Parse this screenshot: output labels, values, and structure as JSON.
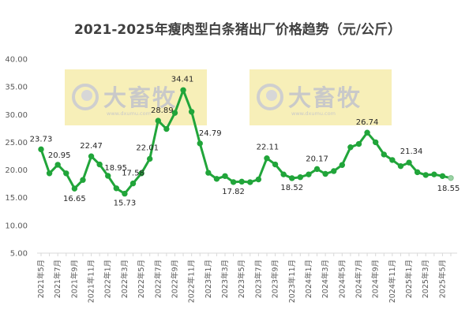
{
  "chart_data": {
    "type": "line",
    "title": "2021-2025年瘦肉型白条猪出厂价格趋势（元/公斤）",
    "ylim": [
      5,
      40
    ],
    "yticks": [
      "5.00",
      "10.00",
      "15.00",
      "20.00",
      "25.00",
      "30.00",
      "35.00",
      "40.00"
    ],
    "grid": false,
    "legend": "none",
    "line_color": "#21a53a",
    "x": [
      "2021年5月",
      "2021年6月",
      "2021年7月",
      "2021年8月",
      "2021年9月",
      "2021年10月",
      "2021年11月",
      "2021年12月",
      "2022年1月",
      "2022年2月",
      "2022年3月",
      "2022年4月",
      "2022年5月",
      "2022年6月",
      "2022年7月",
      "2022年8月",
      "2022年9月",
      "2022年10月",
      "2022年11月",
      "2022年12月",
      "2023年1月",
      "2023年2月",
      "2023年3月",
      "2023年4月",
      "2023年5月",
      "2023年6月",
      "2023年7月",
      "2023年8月",
      "2023年9月",
      "2023年10月",
      "2023年11月",
      "2023年12月",
      "2024年1月",
      "2024年2月",
      "2024年3月",
      "2024年4月",
      "2024年5月",
      "2024年6月",
      "2024年7月",
      "2024年8月",
      "2024年9月",
      "2024年10月",
      "2024年11月",
      "2024年12月",
      "2025年1月",
      "2025年2月",
      "2025年3月",
      "2025年4月",
      "2025年5月",
      "2025年6月"
    ],
    "xtick_labels": [
      "2021年5月",
      "2021年7月",
      "2021年9月",
      "2021年11月",
      "2022年1月",
      "2022年3月",
      "2022年5月",
      "2022年7月",
      "2022年9月",
      "2022年11月",
      "2023年1月",
      "2023年3月",
      "2023年5月",
      "2023年7月",
      "2023年9月",
      "2023年11月",
      "2024年1月",
      "2024年3月",
      "2024年5月",
      "2024年7月",
      "2024年9月",
      "2024年11月",
      "2025年1月",
      "2025年3月",
      "2025年5月"
    ],
    "values": [
      23.73,
      19.4,
      20.95,
      19.4,
      16.65,
      18.2,
      22.47,
      21.0,
      18.95,
      16.7,
      15.73,
      17.58,
      19.4,
      22.01,
      28.89,
      27.4,
      30.3,
      34.41,
      30.5,
      24.79,
      19.5,
      18.4,
      18.9,
      17.82,
      17.9,
      17.8,
      18.3,
      22.11,
      21.0,
      19.2,
      18.52,
      18.7,
      19.2,
      20.17,
      19.3,
      19.8,
      20.9,
      24.1,
      24.7,
      26.74,
      25.0,
      22.8,
      21.8,
      20.7,
      21.34,
      19.6,
      19.1,
      19.2,
      18.9,
      18.55
    ],
    "data_labels": [
      {
        "index": 0,
        "text": "23.73"
      },
      {
        "index": 2,
        "text": "20.95"
      },
      {
        "index": 4,
        "text": "16.65"
      },
      {
        "index": 6,
        "text": "22.47"
      },
      {
        "index": 8,
        "text": "18.95"
      },
      {
        "index": 10,
        "text": "15.73"
      },
      {
        "index": 11,
        "text": "17.58"
      },
      {
        "index": 13,
        "text": "22.01"
      },
      {
        "index": 14,
        "text": "28.89"
      },
      {
        "index": 17,
        "text": "34.41"
      },
      {
        "index": 19,
        "text": "24.79"
      },
      {
        "index": 23,
        "text": "17.82"
      },
      {
        "index": 27,
        "text": "22.11"
      },
      {
        "index": 30,
        "text": "18.52"
      },
      {
        "index": 33,
        "text": "20.17"
      },
      {
        "index": 39,
        "text": "26.74"
      },
      {
        "index": 44,
        "text": "21.34"
      },
      {
        "index": 49,
        "text": "18.55"
      }
    ]
  },
  "watermark": {
    "brand": "大畜牧",
    "url": "www.dxumu.com",
    "band_color": "#f7efb8",
    "text_color": "#c9c9c9"
  }
}
